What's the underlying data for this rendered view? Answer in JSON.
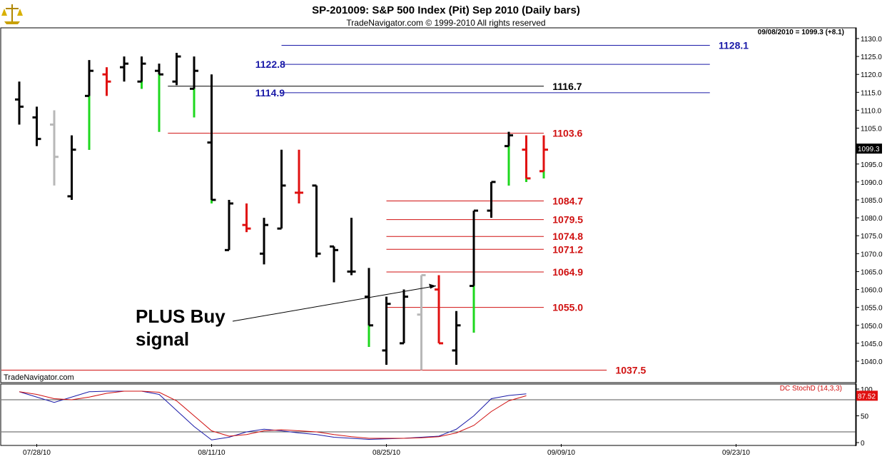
{
  "header": {
    "title": "SP-201009:  S&P 500 Index (Pit) Sep 2010  (Daily bars)",
    "subtitle": "TradeNavigator.com © 1999-2010 All rights reserved",
    "last_info": "09/08/2010 = 1099.3 (+8.1)",
    "watermark": "TradeNavigator.com"
  },
  "annotation": {
    "line1": "PLUS Buy",
    "line2": "signal"
  },
  "chart_data": [
    {
      "type": "bar",
      "subtype": "ohlc",
      "ylim": [
        1035,
        1133
      ],
      "y_ticks": [
        "1040.0",
        "1045.0",
        "1050.0",
        "1055.0",
        "1060.0",
        "1065.0",
        "1070.0",
        "1075.0",
        "1080.0",
        "1085.0",
        "1090.0",
        "1095.0",
        "1100.0",
        "1105.0",
        "1110.0",
        "1115.0",
        "1120.0",
        "1125.0",
        "1130.0"
      ],
      "x_ticks": [
        {
          "label": "07/28/10",
          "slot": 1
        },
        {
          "label": "08/11/10",
          "slot": 11
        },
        {
          "label": "08/25/10",
          "slot": 21
        },
        {
          "label": "09/09/10",
          "slot": 31
        },
        {
          "label": "09/23/10",
          "slot": 41
        }
      ],
      "last_price": "1099.3",
      "bars": [
        {
          "o": 1113.0,
          "h": 1118.0,
          "l": 1106.0,
          "c": 1111.0,
          "color": "black"
        },
        {
          "o": 1108.0,
          "h": 1111.0,
          "l": 1100.0,
          "c": 1102.0,
          "color": "black"
        },
        {
          "o": 1106.0,
          "h": 1110.0,
          "l": 1089.0,
          "c": 1097.0,
          "color": "gray"
        },
        {
          "o": 1086.0,
          "h": 1103.0,
          "l": 1085.0,
          "c": 1099.0,
          "color": "black"
        },
        {
          "o": 1114.0,
          "h": 1124.0,
          "l": 1099.0,
          "c": 1121.0,
          "color": "black",
          "wick": "green"
        },
        {
          "o": 1120.0,
          "h": 1122.0,
          "l": 1114.0,
          "c": 1118.0,
          "color": "red"
        },
        {
          "o": 1122.0,
          "h": 1125.0,
          "l": 1118.0,
          "c": 1123.0,
          "color": "black"
        },
        {
          "o": 1118.0,
          "h": 1125.0,
          "l": 1116.0,
          "c": 1123.0,
          "color": "black",
          "wick": "green"
        },
        {
          "o": 1121.0,
          "h": 1123.0,
          "l": 1104.0,
          "c": 1120.0,
          "color": "black",
          "wick": "green"
        },
        {
          "o": 1118.0,
          "h": 1126.0,
          "l": 1117.0,
          "c": 1125.0,
          "color": "black"
        },
        {
          "o": 1116.0,
          "h": 1125.0,
          "l": 1108.0,
          "c": 1121.0,
          "color": "black",
          "wick": "green"
        },
        {
          "o": 1101.0,
          "h": 1120.0,
          "l": 1084.0,
          "c": 1085.0,
          "color": "black",
          "wick": "green"
        },
        {
          "o": 1071.0,
          "h": 1085.0,
          "l": 1071.0,
          "c": 1084.0,
          "color": "black"
        },
        {
          "o": 1078.0,
          "h": 1084.0,
          "l": 1076.0,
          "c": 1077.0,
          "color": "red"
        },
        {
          "o": 1070.0,
          "h": 1080.0,
          "l": 1067.0,
          "c": 1078.0,
          "color": "black"
        },
        {
          "o": 1077.0,
          "h": 1099.0,
          "l": 1077.0,
          "c": 1089.0,
          "color": "black",
          "wick": "green"
        },
        {
          "o": 1087.0,
          "h": 1099.0,
          "l": 1084.0,
          "c": 1087.0,
          "color": "red"
        },
        {
          "o": 1089.0,
          "h": 1089.0,
          "l": 1069.0,
          "c": 1070.0,
          "color": "black"
        },
        {
          "o": 1072.0,
          "h": 1072.0,
          "l": 1062.0,
          "c": 1071.0,
          "color": "black"
        },
        {
          "o": 1065.0,
          "h": 1080.0,
          "l": 1064.0,
          "c": 1065.0,
          "color": "black"
        },
        {
          "o": 1058.0,
          "h": 1066.0,
          "l": 1044.0,
          "c": 1050.0,
          "color": "black",
          "wick": "green"
        },
        {
          "o": 1043.0,
          "h": 1058.0,
          "l": 1039.0,
          "c": 1056.0,
          "color": "black"
        },
        {
          "o": 1045.0,
          "h": 1060.0,
          "l": 1045.0,
          "c": 1058.0,
          "color": "black"
        },
        {
          "o": 1053.0,
          "h": 1064.0,
          "l": 1037.5,
          "c": 1064.0,
          "color": "gray"
        },
        {
          "o": 1060.0,
          "h": 1064.0,
          "l": 1045.0,
          "c": 1045.0,
          "color": "red"
        },
        {
          "o": 1043.0,
          "h": 1054.0,
          "l": 1039.0,
          "c": 1050.0,
          "color": "black"
        },
        {
          "o": 1061.0,
          "h": 1082.0,
          "l": 1048.0,
          "c": 1082.0,
          "color": "black",
          "wick": "green"
        },
        {
          "o": 1082.0,
          "h": 1090.0,
          "l": 1080.0,
          "c": 1090.0,
          "color": "black"
        },
        {
          "o": 1100.0,
          "h": 1104.0,
          "l": 1089.0,
          "c": 1103.0,
          "color": "black",
          "wick": "green"
        },
        {
          "o": 1099.0,
          "h": 1103.0,
          "l": 1090.0,
          "c": 1091.0,
          "color": "red",
          "wick": "green"
        },
        {
          "o": 1093.0,
          "h": 1103.0,
          "l": 1091.0,
          "c": 1099.0,
          "color": "red",
          "wick": "green"
        }
      ],
      "levels": [
        {
          "value": 1128.1,
          "label": "1128.1",
          "color": "#1a1aa8",
          "from_slot": 15,
          "to_slot": 39.5,
          "label_slot": 40
        },
        {
          "value": 1122.8,
          "label": "1122.8",
          "color": "#1a1aa8",
          "from_slot": 15,
          "to_slot": 39.5,
          "label_slot": 13.5
        },
        {
          "value": 1116.7,
          "label": "1116.7",
          "color": "#000000",
          "from_slot": 8.5,
          "to_slot": 30,
          "label_slot": 30.5
        },
        {
          "value": 1114.9,
          "label": "1114.9",
          "color": "#1a1aa8",
          "from_slot": 15,
          "to_slot": 39.5,
          "label_slot": 13.5
        },
        {
          "value": 1103.6,
          "label": "1103.6",
          "color": "#d01010",
          "from_slot": 8.5,
          "to_slot": 30,
          "label_slot": 30.5
        },
        {
          "value": 1084.7,
          "label": "1084.7",
          "color": "#d01010",
          "from_slot": 21,
          "to_slot": 30,
          "label_slot": 30.5
        },
        {
          "value": 1079.5,
          "label": "1079.5",
          "color": "#d01010",
          "from_slot": 21,
          "to_slot": 30,
          "label_slot": 30.5
        },
        {
          "value": 1074.8,
          "label": "1074.8",
          "color": "#d01010",
          "from_slot": 21,
          "to_slot": 30,
          "label_slot": 30.5
        },
        {
          "value": 1071.2,
          "label": "1071.2",
          "color": "#d01010",
          "from_slot": 21,
          "to_slot": 30,
          "label_slot": 30.5
        },
        {
          "value": 1064.9,
          "label": "1064.9",
          "color": "#d01010",
          "from_slot": 21,
          "to_slot": 30,
          "label_slot": 30.5
        },
        {
          "value": 1055.0,
          "label": "1055.0",
          "color": "#d01010",
          "from_slot": 21,
          "to_slot": 30,
          "label_slot": 30.5
        },
        {
          "value": 1037.5,
          "label": "1037.5",
          "color": "#d01010",
          "from_slot": -1,
          "to_slot": 33.6,
          "label_slot": 34.1
        }
      ],
      "signal_target": {
        "slot": 24,
        "value": 1061.0
      }
    },
    {
      "type": "line",
      "title": "DC StochD (14,3,3)",
      "ylim": [
        0,
        100
      ],
      "y_ticks": [
        "0",
        "50",
        "100"
      ],
      "ref_lines": [
        80,
        20
      ],
      "last_value": "87.52",
      "series": [
        {
          "color": "#1a1aa8",
          "values": [
            95,
            85,
            75,
            85,
            95,
            96,
            96,
            96,
            90,
            60,
            30,
            5,
            10,
            20,
            25,
            22,
            18,
            15,
            10,
            8,
            6,
            7,
            8,
            10,
            12,
            25,
            50,
            82,
            88,
            91
          ]
        },
        {
          "color": "#d01010",
          "values": [
            95,
            90,
            82,
            80,
            85,
            92,
            96,
            96,
            94,
            78,
            50,
            22,
            12,
            15,
            22,
            24,
            22,
            20,
            15,
            11,
            8,
            8,
            8,
            9,
            11,
            18,
            32,
            58,
            78,
            87.5
          ]
        }
      ]
    }
  ]
}
